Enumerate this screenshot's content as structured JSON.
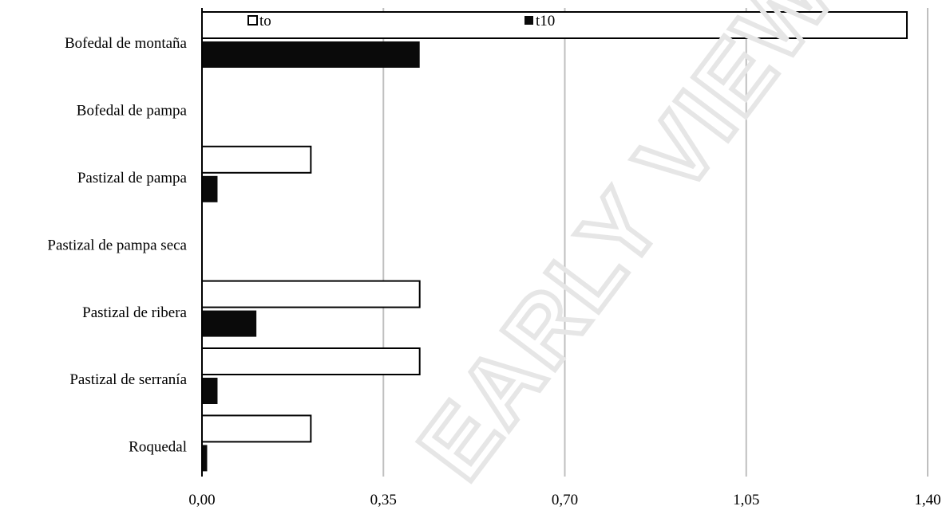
{
  "watermark": "EARLY VIEW",
  "chart_data": {
    "type": "bar",
    "orientation": "horizontal",
    "categories": [
      "Bofedal de montaña",
      "Bofedal de pampa",
      "Pastizal de pampa",
      "Pastizal de pampa seca",
      "Pastizal de ribera",
      "Pastizal de serranía",
      "Roquedal"
    ],
    "series": [
      {
        "name": "to",
        "color": "#ffffff",
        "values": [
          1.36,
          0,
          0.21,
          0,
          0.42,
          0.42,
          0.21
        ]
      },
      {
        "name": "t10",
        "color": "#0a0a0a",
        "values": [
          0.42,
          0,
          0.03,
          0,
          0.105,
          0.03,
          0.01
        ]
      }
    ],
    "xlim": [
      0,
      1.4
    ],
    "xticks": [
      "0,00",
      "0,35",
      "0,70",
      "1,05",
      "1,40"
    ],
    "xtick_values": [
      0,
      0.35,
      0.7,
      1.05,
      1.4
    ],
    "title": "",
    "xlabel": "",
    "ylabel": "",
    "grid": "vertical",
    "legend_position": "top"
  }
}
